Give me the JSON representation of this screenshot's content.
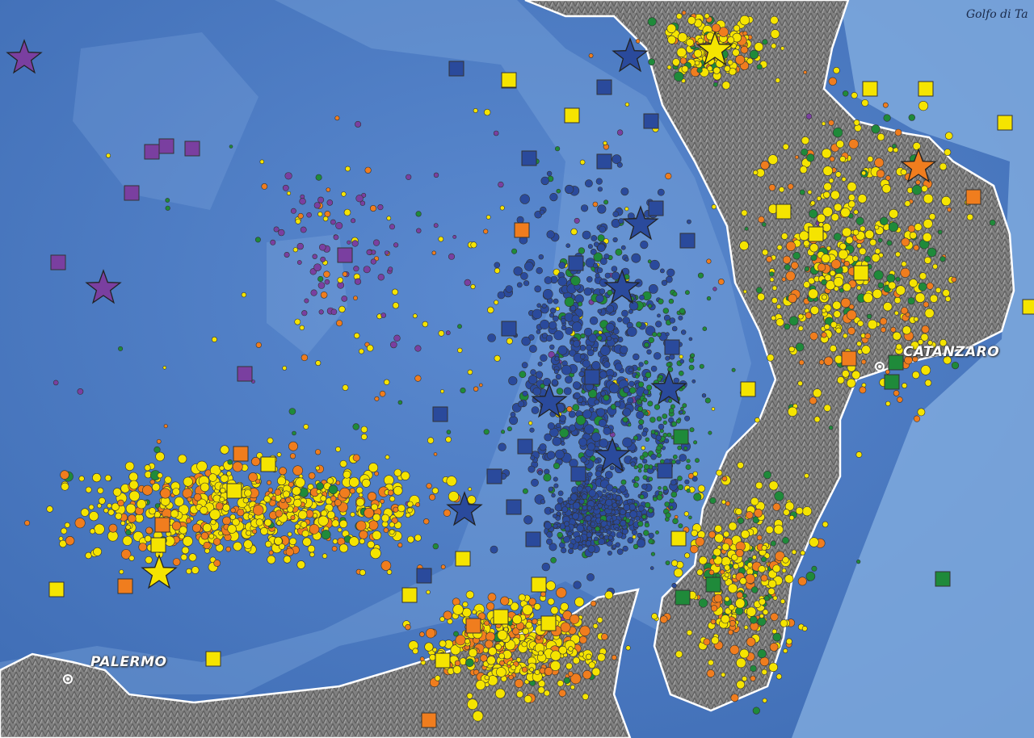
{
  "map": {
    "labels": {
      "gulf": "Golfo di Ta",
      "city_east": "CATANZARO",
      "city_west": "PALERMO"
    },
    "colors": {
      "sea_deep": "#4a78c0",
      "sea_shallow": "#8fb8e6",
      "land": "#7d7d7d",
      "coast": "#ffffff",
      "event_yellow": "#f5e400",
      "event_orange": "#f07d1e",
      "event_green": "#1f8a3a",
      "event_blue": "#2a4a9c",
      "event_purple": "#7a3fa0"
    },
    "symbols": [
      "circle",
      "square",
      "star"
    ],
    "event_classes": [
      "yellow",
      "orange",
      "green",
      "blue",
      "purple"
    ]
  }
}
